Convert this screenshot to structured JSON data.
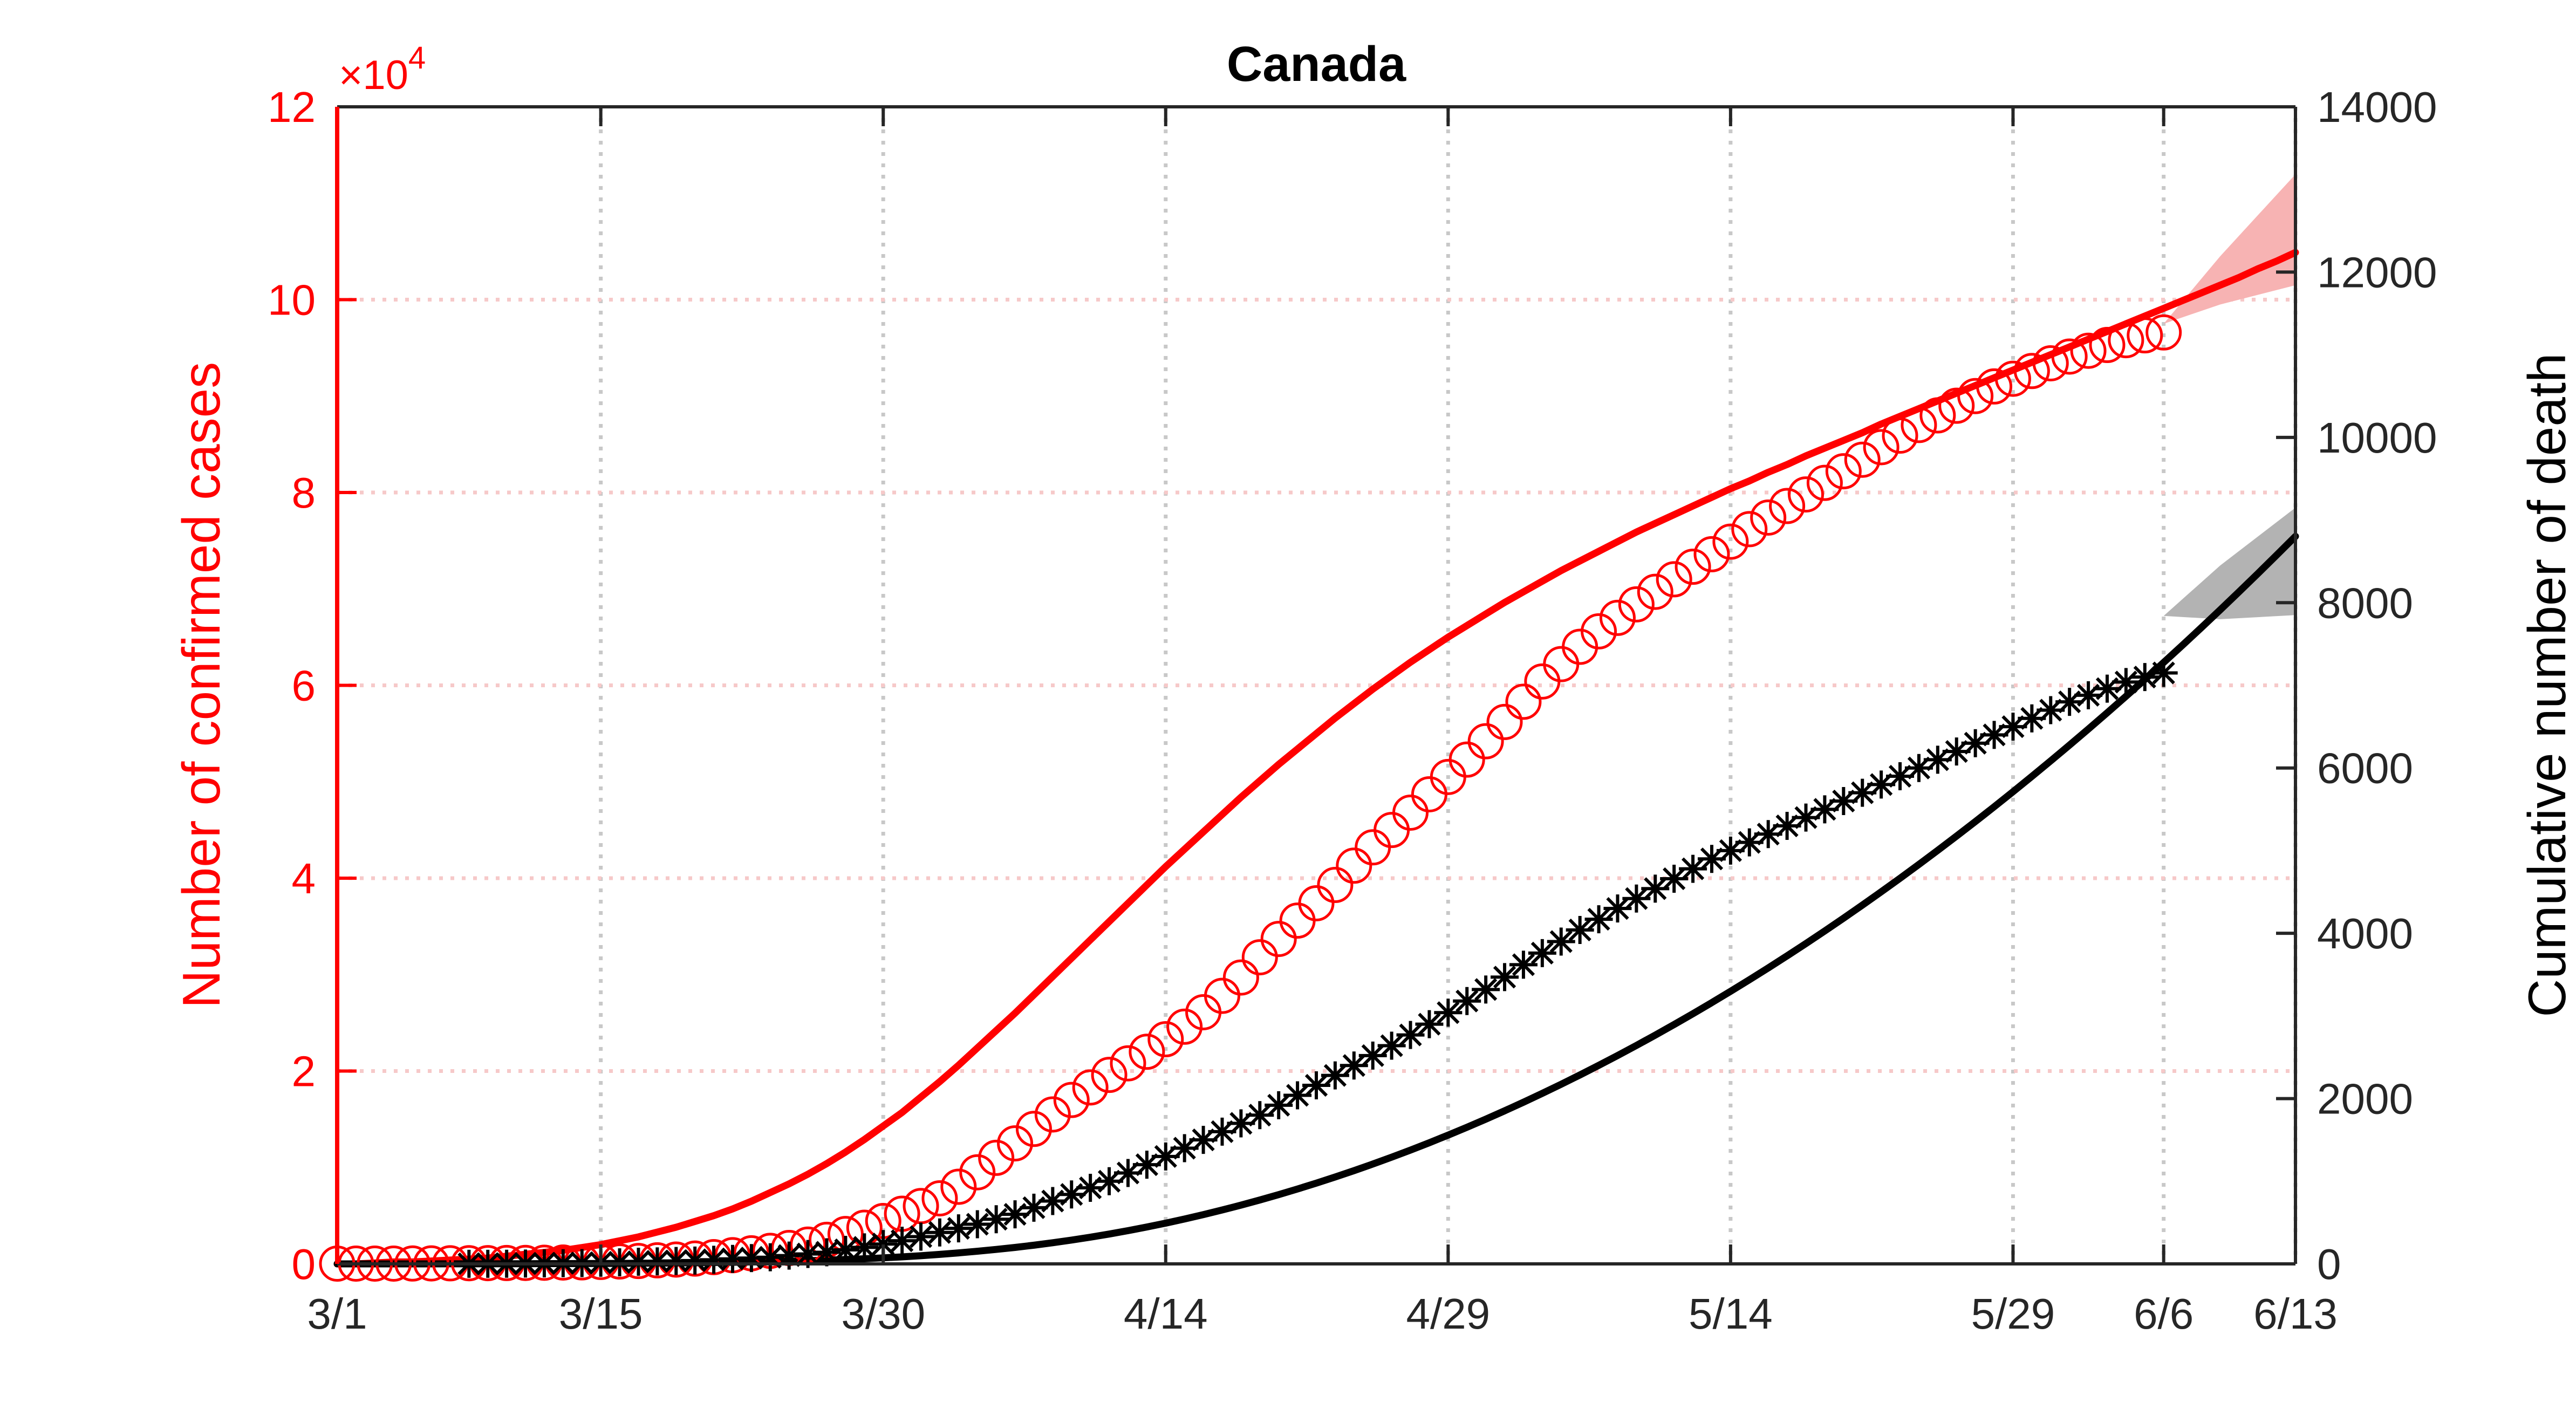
{
  "chart_data": {
    "type": "line",
    "title": "Canada",
    "colors": {
      "cases": "#ff0000",
      "deaths": "#000000",
      "cases_band": "#f7b3b3",
      "deaths_band": "#b3b3b3"
    },
    "grid": true,
    "x_axis": {
      "range_day": [
        0,
        104
      ],
      "tick_days": [
        0,
        14,
        29,
        44,
        59,
        74,
        89,
        97,
        104
      ],
      "tick_labels": [
        "3/1",
        "3/15",
        "3/30",
        "4/14",
        "4/29",
        "5/14",
        "5/29",
        "6/6",
        "6/13"
      ]
    },
    "y_left": {
      "label": "Number of confirmed cases",
      "exponent_label": "×10",
      "exponent_power": "4",
      "ylim": [
        0,
        12
      ],
      "ticks": [
        "0",
        "2",
        "4",
        "6",
        "8",
        "10",
        "12"
      ]
    },
    "y_right": {
      "label": "Cumulative number of death",
      "ylim": [
        0,
        14000
      ],
      "ticks": [
        "0",
        "2000",
        "4000",
        "6000",
        "8000",
        "10000",
        "12000",
        "14000"
      ]
    },
    "series": [
      {
        "key": "cases_observed",
        "marker": "circle",
        "axis": "left",
        "start_day": 0,
        "values": [
          0.003,
          0.003,
          0.003,
          0.003,
          0.004,
          0.005,
          0.006,
          0.007,
          0.008,
          0.009,
          0.01,
          0.012,
          0.014,
          0.016,
          0.02,
          0.025,
          0.03,
          0.037,
          0.045,
          0.055,
          0.07,
          0.09,
          0.11,
          0.135,
          0.165,
          0.2,
          0.25,
          0.31,
          0.375,
          0.445,
          0.52,
          0.6,
          0.68,
          0.8,
          0.95,
          1.1,
          1.25,
          1.4,
          1.55,
          1.7,
          1.83,
          1.96,
          2.08,
          2.2,
          2.33,
          2.46,
          2.61,
          2.78,
          2.97,
          3.18,
          3.37,
          3.56,
          3.74,
          3.93,
          4.13,
          4.32,
          4.5,
          4.68,
          4.87,
          5.05,
          5.23,
          5.42,
          5.62,
          5.83,
          6.04,
          6.22,
          6.4,
          6.56,
          6.7,
          6.84,
          6.97,
          7.1,
          7.23,
          7.36,
          7.49,
          7.62,
          7.74,
          7.86,
          7.98,
          8.1,
          8.22,
          8.34,
          8.47,
          8.59,
          8.7,
          8.8,
          8.9,
          9.0,
          9.1,
          9.18,
          9.26,
          9.34,
          9.41,
          9.47,
          9.53,
          9.58,
          9.63,
          9.66
        ]
      },
      {
        "key": "cases_fit",
        "marker": "line",
        "axis": "left",
        "start_day": 0,
        "values": [
          0.0,
          0.0,
          0.01,
          0.02,
          0.02,
          0.03,
          0.04,
          0.05,
          0.06,
          0.08,
          0.1,
          0.12,
          0.14,
          0.17,
          0.2,
          0.24,
          0.28,
          0.33,
          0.38,
          0.44,
          0.5,
          0.57,
          0.65,
          0.74,
          0.83,
          0.93,
          1.04,
          1.16,
          1.29,
          1.43,
          1.57,
          1.73,
          1.89,
          2.06,
          2.24,
          2.42,
          2.6,
          2.79,
          2.98,
          3.17,
          3.36,
          3.55,
          3.74,
          3.93,
          4.12,
          4.3,
          4.48,
          4.66,
          4.84,
          5.01,
          5.18,
          5.34,
          5.5,
          5.66,
          5.81,
          5.96,
          6.1,
          6.24,
          6.37,
          6.5,
          6.62,
          6.74,
          6.86,
          6.97,
          7.08,
          7.19,
          7.29,
          7.39,
          7.49,
          7.59,
          7.68,
          7.77,
          7.86,
          7.95,
          8.04,
          8.12,
          8.21,
          8.29,
          8.38,
          8.46,
          8.54,
          8.62,
          8.71,
          8.79,
          8.87,
          8.95,
          9.03,
          9.11,
          9.19,
          9.27,
          9.35,
          9.43,
          9.51,
          9.59,
          9.67,
          9.75,
          9.83,
          9.91,
          9.99,
          10.07,
          10.15,
          10.23,
          10.32,
          10.4,
          10.49
        ]
      },
      {
        "key": "cases_band",
        "marker": "band",
        "axis": "left",
        "days": [
          97,
          100,
          104
        ],
        "lower": [
          9.75,
          9.95,
          10.15
        ],
        "upper": [
          9.75,
          10.45,
          11.3
        ]
      },
      {
        "key": "deaths_observed",
        "marker": "asterisk",
        "axis": "right",
        "start_day": 7,
        "values": [
          1,
          1,
          2,
          4,
          6,
          8,
          10,
          14,
          19,
          25,
          30,
          35,
          40,
          50,
          60,
          70,
          80,
          100,
          120,
          140,
          170,
          200,
          240,
          280,
          330,
          380,
          430,
          480,
          540,
          600,
          680,
          760,
          840,
          920,
          1000,
          1100,
          1200,
          1300,
          1400,
          1500,
          1600,
          1700,
          1800,
          1920,
          2040,
          2160,
          2280,
          2400,
          2520,
          2640,
          2770,
          2900,
          3040,
          3180,
          3320,
          3470,
          3620,
          3760,
          3900,
          4040,
          4170,
          4300,
          4420,
          4540,
          4660,
          4780,
          4900,
          5000,
          5100,
          5200,
          5300,
          5400,
          5500,
          5600,
          5700,
          5800,
          5900,
          6000,
          6100,
          6200,
          6300,
          6400,
          6500,
          6600,
          6700,
          6800,
          6880,
          6960,
          7040,
          7100,
          7150
        ]
      },
      {
        "key": "deaths_fit",
        "marker": "line",
        "axis": "right",
        "start_day": 0,
        "values": [
          0,
          0,
          0,
          0,
          0,
          0,
          1,
          1,
          1,
          2,
          2,
          3,
          3,
          4,
          5,
          6,
          8,
          9,
          11,
          13,
          16,
          19,
          23,
          27,
          32,
          38,
          45,
          53,
          62,
          73,
          85,
          99,
          115,
          133,
          153,
          175,
          199,
          226,
          256,
          288,
          323,
          361,
          402,
          446,
          493,
          543,
          596,
          652,
          711,
          773,
          838,
          906,
          977,
          1051,
          1128,
          1208,
          1291,
          1377,
          1466,
          1558,
          1653,
          1751,
          1852,
          1956,
          2063,
          2173,
          2286,
          2402,
          2521,
          2643,
          2768,
          2896,
          3027,
          3161,
          3298,
          3438,
          3581,
          3727,
          3876,
          4028,
          4183,
          4341,
          4502,
          4666,
          4833,
          5003,
          5176,
          5352,
          5531,
          5713,
          5898,
          6086,
          6277,
          6471,
          6668,
          6868,
          7071,
          7277,
          7486,
          7698,
          7913,
          8131,
          8352,
          8576,
          8803
        ]
      },
      {
        "key": "deaths_band",
        "marker": "band",
        "axis": "right",
        "days": [
          97,
          100,
          104
        ],
        "lower": [
          7840,
          7800,
          7850
        ],
        "upper": [
          7840,
          8450,
          9150
        ]
      }
    ]
  }
}
